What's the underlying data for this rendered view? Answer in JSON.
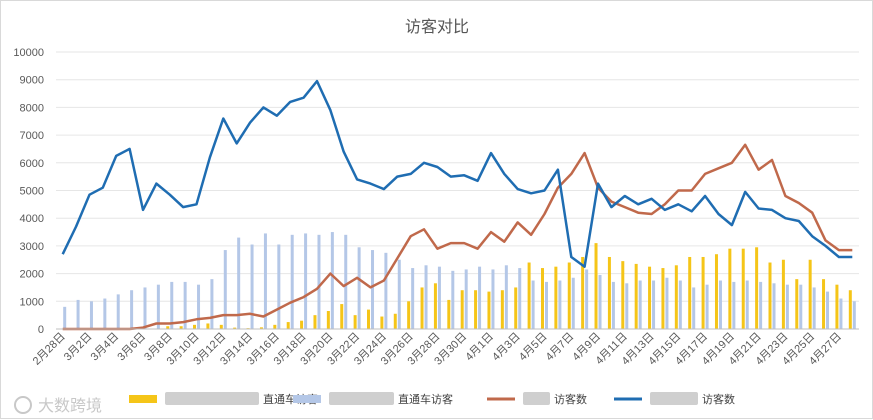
{
  "chart_data": {
    "type": "bar",
    "title": "访客对比",
    "xlabel": "",
    "ylabel": "",
    "ylim": [
      0,
      10000
    ],
    "yticks": [
      0,
      1000,
      2000,
      3000,
      4000,
      5000,
      6000,
      7000,
      8000,
      9000,
      10000
    ],
    "grid": true,
    "legend_position": "bottom",
    "categories": [
      "2月28日",
      "3月1日",
      "3月2日",
      "3月3日",
      "3月4日",
      "3月5日",
      "3月6日",
      "3月7日",
      "3月8日",
      "3月9日",
      "3月10日",
      "3月11日",
      "3月12日",
      "3月13日",
      "3月14日",
      "3月15日",
      "3月16日",
      "3月17日",
      "3月18日",
      "3月19日",
      "3月20日",
      "3月21日",
      "3月22日",
      "3月23日",
      "3月24日",
      "3月25日",
      "3月26日",
      "3月27日",
      "3月28日",
      "3月29日",
      "3月30日",
      "3月31日",
      "4月1日",
      "4月2日",
      "4月3日",
      "4月4日",
      "4月5日",
      "4月6日",
      "4月7日",
      "4月8日",
      "4月9日",
      "4月10日",
      "4月11日",
      "4月12日",
      "4月13日",
      "4月14日",
      "4月15日",
      "4月16日",
      "4月17日",
      "4月18日",
      "4月19日",
      "4月20日",
      "4月21日",
      "4月22日",
      "4月23日",
      "4月24日",
      "4月25日",
      "4月26日",
      "4月27日",
      "4月28日"
    ],
    "xtick_labels": [
      "2月28日",
      "3月2日",
      "3月4日",
      "3月6日",
      "3月8日",
      "3月10日",
      "3月12日",
      "3月14日",
      "3月16日",
      "3月18日",
      "3月20日",
      "3月22日",
      "3月24日",
      "3月26日",
      "3月28日",
      "3月30日",
      "4月1日",
      "4月3日",
      "4月5日",
      "4月7日",
      "4月9日",
      "4月11日",
      "4月13日",
      "4月15日",
      "4月17日",
      "4月19日",
      "4月21日",
      "4月23日",
      "4月25日",
      "4月27日"
    ],
    "series": [
      {
        "name": "直通车访客",
        "kind": "bar",
        "color": "#f5c518",
        "values": [
          0,
          0,
          0,
          0,
          0,
          0,
          0,
          0,
          100,
          100,
          150,
          200,
          150,
          50,
          30,
          60,
          150,
          250,
          300,
          500,
          650,
          900,
          500,
          700,
          450,
          550,
          1000,
          1500,
          1650,
          1050,
          1400,
          1400,
          1350,
          1400,
          1500,
          2400,
          2200,
          2250,
          2400,
          2600,
          3100,
          2600,
          2450,
          2350,
          2250,
          2200,
          2300,
          2600,
          2600,
          2700,
          2900,
          2900,
          2950,
          2400,
          2500,
          1800,
          2500,
          1800,
          1600,
          1400
        ]
      },
      {
        "name": "直通车访客",
        "kind": "bar",
        "color": "#b4c7e7",
        "values": [
          800,
          1050,
          1000,
          1100,
          1250,
          1400,
          1500,
          1600,
          1700,
          1700,
          1600,
          1800,
          2850,
          3300,
          3050,
          3450,
          3050,
          3400,
          3450,
          3400,
          3500,
          3400,
          2950,
          2850,
          2750,
          2500,
          2200,
          2300,
          2250,
          2100,
          2150,
          2250,
          2150,
          2300,
          2200,
          1750,
          1700,
          1750,
          1850,
          2150,
          1950,
          1700,
          1650,
          1750,
          1750,
          1850,
          1750,
          1500,
          1600,
          1750,
          1700,
          1750,
          1700,
          1650,
          1600,
          1600,
          1500,
          1350,
          1100,
          1000
        ]
      },
      {
        "name": "访客数",
        "kind": "line",
        "color": "#c0694b",
        "values": [
          0,
          0,
          0,
          0,
          0,
          0,
          50,
          200,
          200,
          250,
          350,
          400,
          500,
          500,
          550,
          450,
          700,
          950,
          1150,
          1450,
          2000,
          1550,
          1850,
          1500,
          1750,
          2550,
          3350,
          3600,
          2900,
          3100,
          3100,
          2900,
          3500,
          3150,
          3850,
          3400,
          4150,
          5100,
          5600,
          6350,
          5100,
          4600,
          4400,
          4200,
          4150,
          4500,
          5000,
          5000,
          5600,
          5800,
          6000,
          6650,
          5750,
          6100,
          4800,
          4550,
          4200,
          3200,
          2850,
          2850
        ]
      },
      {
        "name": "访客数",
        "kind": "line",
        "color": "#1f6db2",
        "values": [
          2700,
          3700,
          4850,
          5100,
          6250,
          6500,
          4300,
          5250,
          4850,
          4400,
          4500,
          6200,
          7600,
          6700,
          7450,
          8000,
          7700,
          8200,
          8350,
          8950,
          7900,
          6400,
          5400,
          5250,
          5050,
          5500,
          5600,
          6000,
          5850,
          5500,
          5550,
          5350,
          6350,
          5600,
          5050,
          4900,
          5000,
          5750,
          2600,
          2250,
          5250,
          4400,
          4800,
          4500,
          4700,
          4300,
          4500,
          4250,
          4800,
          4150,
          3750,
          4950,
          4350,
          4300,
          4000,
          3900,
          3350,
          3000,
          2600,
          2600
        ]
      }
    ],
    "legend": [
      {
        "label": "直通车访客",
        "color": "#f5c518",
        "kind": "bar"
      },
      {
        "label": "直通车访客",
        "color": "#b4c7e7",
        "kind": "bar"
      },
      {
        "label": "访客数",
        "color": "#c0694b",
        "kind": "line"
      },
      {
        "label": "访客数",
        "color": "#1f6db2",
        "kind": "line"
      }
    ]
  },
  "watermark": {
    "text": "大数跨境"
  }
}
